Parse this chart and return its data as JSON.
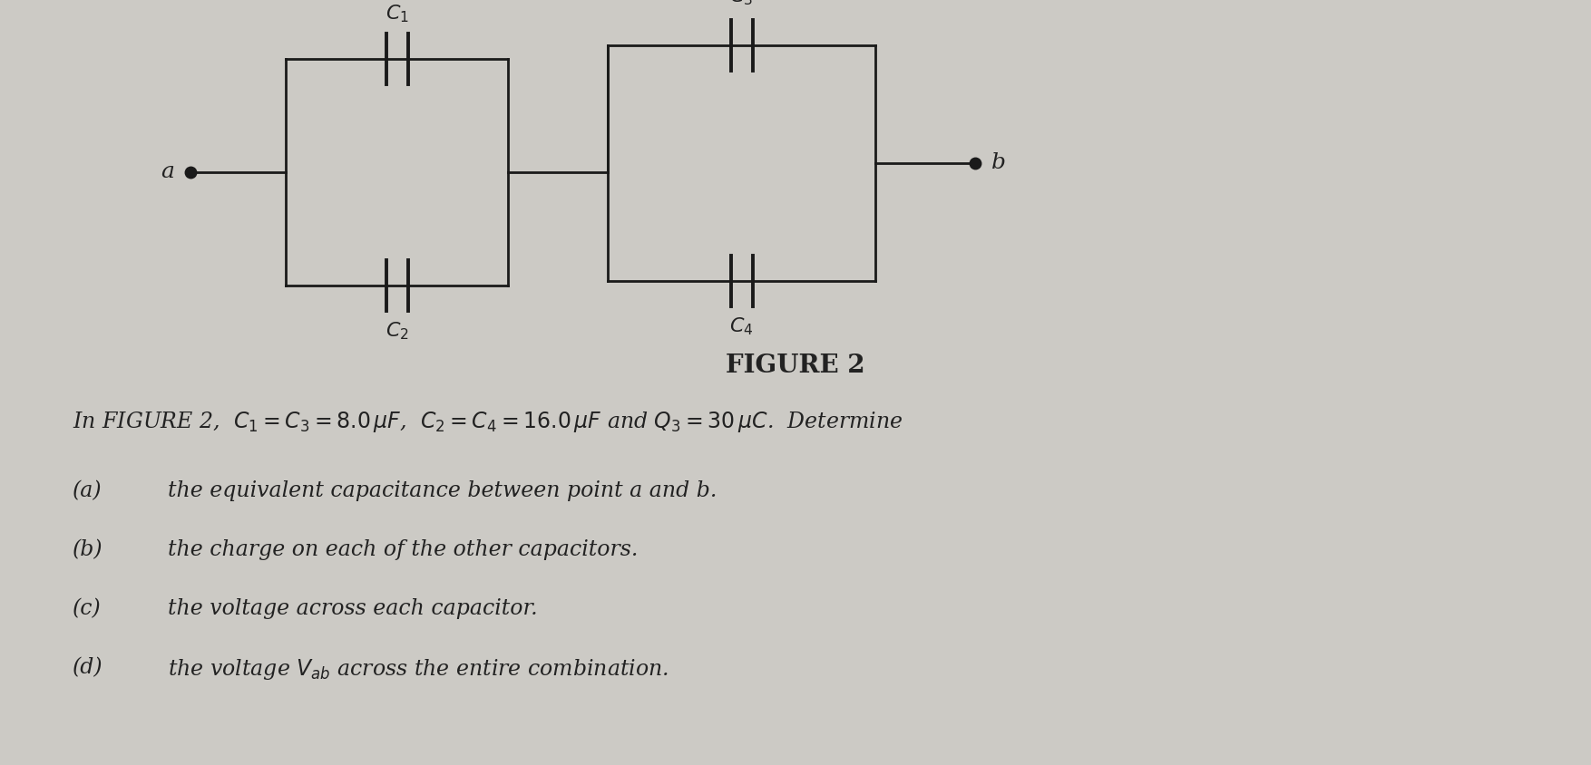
{
  "bg_color": "#cccac5",
  "line_color": "#1a1a1a",
  "text_color": "#222222",
  "fig_title": "FIGURE 2",
  "line1_part1": "In FIGURE 2,  ",
  "line1_math": "$C_1 = C_3 = 8.0\\,\\mu F$,  $C_2 = C_4 = 16.0\\,\\mu F$ and $Q_3 = 30\\,\\mu C$.",
  "line1_part2": "  Determine",
  "items_label": [
    "(a)",
    "(b)",
    "(c)",
    "(d)"
  ],
  "items_text": [
    "the equivalent capacitance between point a and b.",
    "the charge on each of the other capacitors.",
    "the voltage across each capacitor.",
    "the voltage $V_{ab}$ across the entire combination."
  ],
  "lw": 2.0
}
